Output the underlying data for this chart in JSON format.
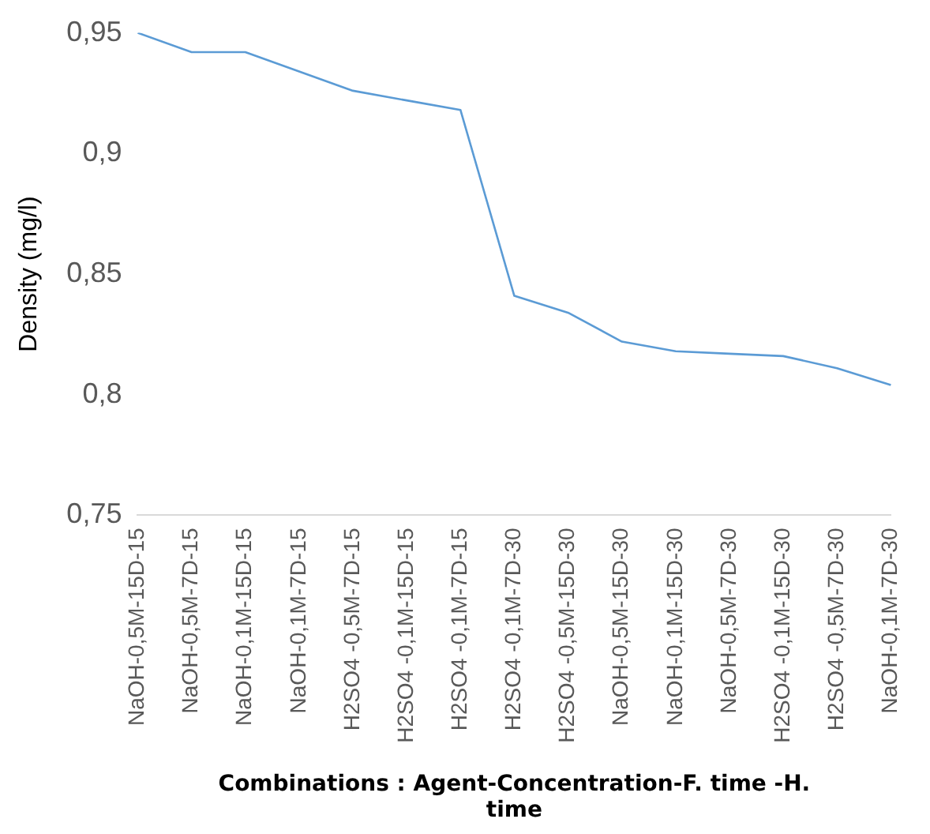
{
  "chart_data": {
    "type": "line",
    "xlabel": "Combinations : Agent-Concentration-F. time -H. time",
    "ylabel": "Density (mg/l)",
    "categories": [
      "NaOH-0,5M-15D-15",
      "NaOH-0,5M-7D-15",
      "NaOH-0,1M-15D-15",
      "NaOH-0,1M-7D-15",
      "H2SO4 -0,5M-7D-15",
      "H2SO4 -0,1M-15D-15",
      "H2SO4 -0,1M-7D-15",
      "H2SO4 -0,1M-7D-30",
      "H2SO4 -0,5M-15D-30",
      "NaOH-0,5M-15D-30",
      "NaOH-0,1M-15D-30",
      "NaOH-0,5M-7D-30",
      "H2SO4 -0,1M-15D-30",
      "H2SO4 -0,5M-7D-30",
      "NaOH-0,1M-7D-30"
    ],
    "series": [
      {
        "color": "#5b9bd5",
        "values": [
          0.95,
          0.942,
          0.942,
          0.934,
          0.926,
          0.922,
          0.918,
          0.841,
          0.834,
          0.822,
          0.818,
          0.817,
          0.816,
          0.811,
          0.804
        ]
      }
    ],
    "ylim": [
      0.75,
      0.95
    ],
    "yticks": [
      {
        "value": 0.75,
        "label": "0,75"
      },
      {
        "value": 0.8,
        "label": "0,8"
      },
      {
        "value": 0.85,
        "label": "0,85"
      },
      {
        "value": 0.9,
        "label": "0,9"
      },
      {
        "value": 0.95,
        "label": "0,95"
      }
    ],
    "grid": false,
    "legend": false,
    "marker": "none",
    "line_style": "solid"
  }
}
